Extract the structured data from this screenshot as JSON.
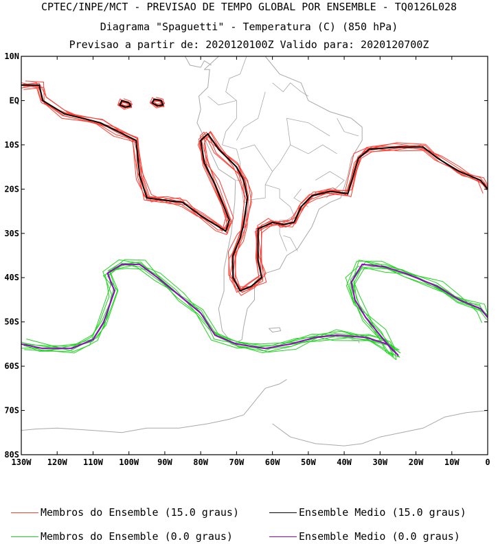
{
  "header": {
    "line1": "CPTEC/INPE/MCT - PREVISAO DE TEMPO GLOBAL POR ENSEMBLE - TQ0126L028",
    "line2": "Diagrama \"Spaguetti\" - Temperatura (C) (850 hPa)",
    "line3": "Previsao a partir de: 2020120100Z  Valido para: 2020120700Z"
  },
  "map": {
    "lon_range": [
      -130,
      0
    ],
    "lat_range": [
      -80,
      10
    ],
    "lat_labels": [
      {
        "lat": 10,
        "text": "10N"
      },
      {
        "lat": 0,
        "text": "EQ"
      },
      {
        "lat": -10,
        "text": "10S"
      },
      {
        "lat": -20,
        "text": "20S"
      },
      {
        "lat": -30,
        "text": "30S"
      },
      {
        "lat": -40,
        "text": "40S"
      },
      {
        "lat": -50,
        "text": "50S"
      },
      {
        "lat": -60,
        "text": "60S"
      },
      {
        "lat": -70,
        "text": "70S"
      },
      {
        "lat": -80,
        "text": "80S"
      }
    ],
    "lon_labels": [
      {
        "lon": -130,
        "text": "130W"
      },
      {
        "lon": -120,
        "text": "120W"
      },
      {
        "lon": -110,
        "text": "110W"
      },
      {
        "lon": -100,
        "text": "100W"
      },
      {
        "lon": -90,
        "text": "90W"
      },
      {
        "lon": -80,
        "text": "80W"
      },
      {
        "lon": -70,
        "text": "70W"
      },
      {
        "lon": -60,
        "text": "60W"
      },
      {
        "lon": -50,
        "text": "50W"
      },
      {
        "lon": -40,
        "text": "40W"
      },
      {
        "lon": -30,
        "text": "30W"
      },
      {
        "lon": -20,
        "text": "20W"
      },
      {
        "lon": -10,
        "text": "10W"
      },
      {
        "lon": 0,
        "text": "0"
      }
    ],
    "colors": {
      "member_15": "#ff3b30",
      "mean_15": "#000000",
      "member_0": "#1fd41f",
      "mean_0": "#9a00c8",
      "coast": "#a8a8a8"
    },
    "ensemble_size": 8,
    "contours": {
      "mean_15_main": [
        [
          -130,
          3.5
        ],
        [
          -125,
          3.5
        ],
        [
          -124,
          0
        ],
        [
          -118,
          -3
        ],
        [
          -108,
          -5
        ],
        [
          -103,
          -7
        ],
        [
          -98,
          -9
        ],
        [
          -97,
          -17
        ],
        [
          -95,
          -22
        ],
        [
          -90,
          -22.5
        ],
        [
          -85,
          -23
        ],
        [
          -80,
          -26
        ],
        [
          -75,
          -28.5
        ],
        [
          -73,
          -29.5
        ],
        [
          -72,
          -27
        ],
        [
          -76,
          -19
        ],
        [
          -79,
          -14
        ],
        [
          -80,
          -9
        ],
        [
          -78,
          -7.5
        ],
        [
          -75,
          -11
        ],
        [
          -70,
          -15
        ],
        [
          -68,
          -18
        ],
        [
          -67,
          -22
        ],
        [
          -68,
          -28
        ],
        [
          -69,
          -31
        ],
        [
          -71,
          -35
        ],
        [
          -71,
          -40
        ],
        [
          -69,
          -43
        ],
        [
          -66,
          -42
        ],
        [
          -63,
          -40
        ],
        [
          -64,
          -36
        ],
        [
          -64,
          -29
        ],
        [
          -60,
          -27.5
        ],
        [
          -57,
          -28
        ],
        [
          -54,
          -27.5
        ],
        [
          -52,
          -24
        ],
        [
          -49,
          -21.5
        ],
        [
          -44,
          -20.5
        ],
        [
          -39,
          -21
        ],
        [
          -36,
          -13
        ],
        [
          -33,
          -11
        ],
        [
          -25,
          -10.5
        ],
        [
          -18,
          -10.5
        ],
        [
          -14,
          -13
        ],
        [
          -8,
          -16
        ],
        [
          -2,
          -18
        ],
        [
          0,
          -20
        ]
      ],
      "mean_15_loop1": [
        [
          -102,
          0
        ],
        [
          -100,
          -0.5
        ],
        [
          -99.5,
          -1.2
        ],
        [
          -101,
          -1.5
        ],
        [
          -102.5,
          -1
        ],
        [
          -102,
          0
        ]
      ],
      "mean_15_loop2": [
        [
          -93,
          0.3
        ],
        [
          -91,
          0
        ],
        [
          -90.5,
          -1
        ],
        [
          -92,
          -1.2
        ],
        [
          -93.5,
          -0.5
        ],
        [
          -93,
          0.3
        ]
      ],
      "mean_0_west": [
        [
          -130,
          -55
        ],
        [
          -124,
          -56
        ],
        [
          -116,
          -56
        ],
        [
          -110,
          -54
        ],
        [
          -107,
          -50
        ],
        [
          -104,
          -43
        ],
        [
          -106,
          -39
        ],
        [
          -102,
          -37
        ],
        [
          -97,
          -37
        ],
        [
          -92,
          -40
        ],
        [
          -86,
          -44
        ],
        [
          -80,
          -48
        ],
        [
          -76,
          -53
        ],
        [
          -70,
          -55
        ],
        [
          -62,
          -56
        ],
        [
          -55,
          -55
        ],
        [
          -48,
          -53.5
        ],
        [
          -42,
          -53
        ],
        [
          -34,
          -53.5
        ],
        [
          -28,
          -55
        ],
        [
          -25,
          -57.5
        ],
        [
          -27,
          -56
        ],
        [
          -30,
          -53
        ],
        [
          -34,
          -49
        ],
        [
          -37,
          -45
        ],
        [
          -38,
          -41
        ],
        [
          -35,
          -37
        ],
        [
          -29,
          -37.5
        ],
        [
          -23,
          -39
        ],
        [
          -14,
          -42
        ],
        [
          -8,
          -45
        ],
        [
          -2,
          -47
        ],
        [
          0,
          -49
        ]
      ],
      "coast_sa": [
        [
          -79,
          7
        ],
        [
          -75,
          10
        ],
        [
          -67,
          10.5
        ],
        [
          -62,
          10
        ],
        [
          -58,
          6
        ],
        [
          -52,
          4
        ],
        [
          -50,
          0
        ],
        [
          -44,
          -2.5
        ],
        [
          -38,
          -4
        ],
        [
          -35,
          -6
        ],
        [
          -35,
          -9
        ],
        [
          -38,
          -13
        ],
        [
          -39,
          -17
        ],
        [
          -41,
          -22
        ],
        [
          -44,
          -23
        ],
        [
          -47,
          -24.5
        ],
        [
          -49,
          -28.5
        ],
        [
          -51,
          -31
        ],
        [
          -53,
          -33.5
        ],
        [
          -56,
          -35
        ],
        [
          -58,
          -38
        ],
        [
          -62,
          -39
        ],
        [
          -65,
          -41
        ],
        [
          -65,
          -45
        ],
        [
          -67,
          -47
        ],
        [
          -68,
          -51
        ],
        [
          -68.5,
          -54
        ],
        [
          -71,
          -55
        ],
        [
          -74,
          -52
        ],
        [
          -75,
          -47
        ],
        [
          -73.5,
          -43
        ],
        [
          -73.5,
          -38
        ],
        [
          -71.5,
          -30
        ],
        [
          -70.5,
          -23
        ],
        [
          -70.3,
          -18
        ],
        [
          -75,
          -15.5
        ],
        [
          -77,
          -12
        ],
        [
          -79.5,
          -7.5
        ],
        [
          -81,
          -5
        ],
        [
          -80,
          -2
        ],
        [
          -80.5,
          1
        ],
        [
          -78,
          3
        ],
        [
          -77.5,
          7
        ],
        [
          -79,
          7
        ]
      ],
      "coast_ca": [
        [
          -95,
          16
        ],
        [
          -92,
          14.5
        ],
        [
          -89,
          13.5
        ],
        [
          -86,
          12
        ],
        [
          -84,
          9.5
        ],
        [
          -83,
          8
        ],
        [
          -80,
          7.5
        ],
        [
          -79,
          9
        ],
        [
          -77,
          8
        ]
      ],
      "coast_falk": [
        [
          -61,
          -51.5
        ],
        [
          -58,
          -51.3
        ],
        [
          -57.7,
          -52
        ],
        [
          -60,
          -52.3
        ],
        [
          -61,
          -51.5
        ]
      ],
      "coast_sgeorgia": [
        [
          -38,
          -54
        ],
        [
          -36,
          -54.2
        ],
        [
          -35.8,
          -54.8
        ]
      ],
      "coast_ant_peninsula": [
        [
          -56,
          -63
        ],
        [
          -58,
          -64
        ],
        [
          -62,
          -65
        ],
        [
          -64,
          -67
        ],
        [
          -66,
          -69
        ],
        [
          -68,
          -71
        ],
        [
          -72,
          -72
        ],
        [
          -78,
          -73
        ],
        [
          -86,
          -74
        ],
        [
          -95,
          -74
        ],
        [
          -102,
          -75
        ],
        [
          -110,
          -74.5
        ],
        [
          -120,
          -74
        ],
        [
          -126,
          -74.2
        ],
        [
          -130,
          -74.5
        ]
      ],
      "coast_ant_weddell": [
        [
          -60,
          -73
        ],
        [
          -55,
          -76
        ],
        [
          -48,
          -77.5
        ],
        [
          -40,
          -78
        ],
        [
          -35,
          -77.5
        ],
        [
          -30,
          -76
        ],
        [
          -24,
          -75
        ],
        [
          -18,
          -74
        ],
        [
          -12,
          -71.5
        ],
        [
          -6,
          -70.5
        ],
        [
          0,
          -70
        ]
      ],
      "borders": [
        [
          [
            -67,
            10.5
          ],
          [
            -69,
            6
          ],
          [
            -72,
            5
          ],
          [
            -73,
            2
          ],
          [
            -70,
            0
          ]
        ],
        [
          [
            -70,
            0
          ],
          [
            -75,
            -1
          ],
          [
            -78,
            1
          ]
        ],
        [
          [
            -70,
            0
          ],
          [
            -70,
            -4
          ],
          [
            -73,
            -7
          ],
          [
            -74,
            -10
          ],
          [
            -70,
            -11
          ],
          [
            -69,
            -14
          ]
        ],
        [
          [
            -69,
            -14
          ],
          [
            -69,
            -18
          ],
          [
            -70,
            -18
          ]
        ],
        [
          [
            -69,
            -18
          ],
          [
            -68,
            -23
          ],
          [
            -67,
            -23
          ],
          [
            -68,
            -27
          ],
          [
            -69,
            -30
          ]
        ],
        [
          [
            -60,
            -16
          ],
          [
            -62,
            -19
          ],
          [
            -58,
            -20
          ],
          [
            -58,
            -22
          ],
          [
            -55,
            -24
          ],
          [
            -54,
            -26
          ],
          [
            -56,
            -27
          ],
          [
            -58,
            -27
          ]
        ],
        [
          [
            -62,
            -19
          ],
          [
            -62,
            -22
          ],
          [
            -67,
            -22.5
          ]
        ],
        [
          [
            -58,
            -27
          ],
          [
            -58,
            -30
          ],
          [
            -57,
            -32
          ],
          [
            -56,
            -34
          ]
        ],
        [
          [
            -53,
            -34
          ],
          [
            -55,
            -31
          ],
          [
            -57,
            -30.5
          ]
        ],
        [
          [
            -60,
            -16
          ],
          [
            -65,
            -10
          ],
          [
            -69,
            -11
          ]
        ],
        [
          [
            -60,
            -16
          ],
          [
            -58,
            -14
          ],
          [
            -55,
            -10
          ],
          [
            -50,
            -12
          ],
          [
            -46,
            -10
          ],
          [
            -42,
            -12
          ]
        ],
        [
          [
            -55,
            -10
          ],
          [
            -56,
            -4
          ],
          [
            -50,
            -5
          ],
          [
            -44,
            -8
          ]
        ],
        [
          [
            -60,
            4
          ],
          [
            -57,
            2
          ],
          [
            -55,
            4
          ],
          [
            -52,
            2
          ],
          [
            -50,
            1
          ]
        ],
        [
          [
            -62,
            2
          ],
          [
            -64,
            -4
          ],
          [
            -68,
            -6
          ],
          [
            -70,
            -9
          ]
        ],
        [
          [
            -48,
            -18
          ],
          [
            -44,
            -16
          ],
          [
            -40,
            -18
          ],
          [
            -45,
            -22
          ]
        ],
        [
          [
            -52,
            -20
          ],
          [
            -54,
            -22
          ],
          [
            -50,
            -24
          ]
        ],
        [
          [
            -36,
            -8
          ],
          [
            -40,
            -7
          ],
          [
            -42,
            -4
          ]
        ]
      ]
    }
  },
  "legend": {
    "member15_label": "Membros do Ensemble (15.0 graus)",
    "mean15_label": "Ensemble Medio (15.0 graus)",
    "member0_label": "Membros do Ensemble (0.0 graus)",
    "mean0_label": "Ensemble Medio (0.0 graus)"
  }
}
